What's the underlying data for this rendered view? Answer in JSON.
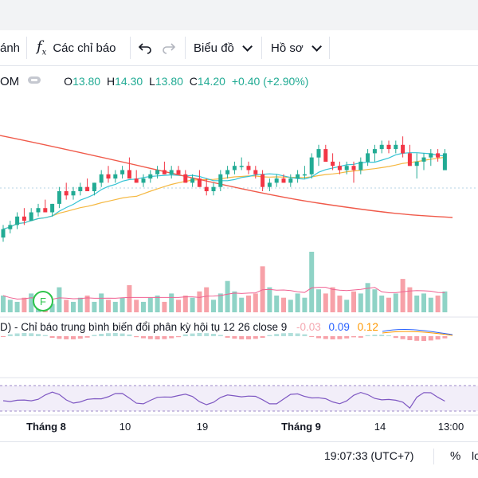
{
  "toolbar": {
    "partial_label": "ánh",
    "indicators_label": "Các chỉ báo",
    "chart_label": "Biểu đồ",
    "profile_label": "Hồ sơ"
  },
  "legend": {
    "symbol_partial": "OM",
    "open_key": "O",
    "open": "13.80",
    "high_key": "H",
    "high": "14.30",
    "low_key": "L",
    "low": "13.80",
    "close_key": "C",
    "close": "14.20",
    "change": "+0.40",
    "change_pct": "(+2.90%)"
  },
  "macd": {
    "label": "D) - Chỉ báo trung bình biến đổi phân kỳ hội tụ 12 26 close 9",
    "v1": "-0.03",
    "v2": "0.09",
    "v3": "0.12"
  },
  "xaxis": {
    "labels": [
      "Tháng 8",
      "10",
      "19",
      "Tháng 9",
      "14",
      "13:00"
    ]
  },
  "status": {
    "time": "19:07:33 (UTC+7)",
    "percent": "%",
    "log_partial": "lo"
  },
  "badge": {
    "letter": "F"
  },
  "colors": {
    "up": "#22ab94",
    "down": "#f23645",
    "ma_red": "#f05a4a",
    "ma_yellow": "#f5b841",
    "ma_cyan": "#35c3d4",
    "rsi": "#7e57c2",
    "macd_v1": "#f4a7b0",
    "macd_v2": "#2962ff",
    "macd_v3": "#ff9800"
  },
  "chart_data": {
    "type": "candlestick",
    "series": [
      {
        "name": "price",
        "values": [
          [
            12.2,
            12.5,
            12.1,
            12.4
          ],
          [
            12.4,
            12.6,
            12.3,
            12.5
          ],
          [
            12.5,
            12.8,
            12.4,
            12.7
          ],
          [
            12.7,
            12.9,
            12.5,
            12.6
          ],
          [
            12.6,
            12.9,
            12.6,
            12.8
          ],
          [
            12.8,
            13.0,
            12.7,
            12.9
          ],
          [
            12.9,
            13.1,
            12.8,
            12.8
          ],
          [
            12.8,
            13.0,
            12.7,
            13.0
          ],
          [
            13.0,
            13.4,
            12.9,
            13.3
          ],
          [
            13.3,
            13.5,
            13.1,
            13.2
          ],
          [
            13.2,
            13.4,
            13.1,
            13.3
          ],
          [
            13.3,
            13.5,
            13.2,
            13.4
          ],
          [
            13.4,
            13.6,
            13.3,
            13.3
          ],
          [
            13.3,
            13.5,
            13.2,
            13.5
          ],
          [
            13.5,
            13.8,
            13.4,
            13.7
          ],
          [
            13.7,
            13.9,
            13.5,
            13.6
          ],
          [
            13.6,
            13.8,
            13.5,
            13.7
          ],
          [
            13.7,
            13.9,
            13.6,
            13.8
          ],
          [
            13.8,
            14.1,
            13.7,
            13.6
          ],
          [
            13.6,
            13.8,
            13.5,
            13.5
          ],
          [
            13.5,
            13.7,
            13.4,
            13.6
          ],
          [
            13.6,
            13.8,
            13.5,
            13.7
          ],
          [
            13.7,
            13.9,
            13.6,
            13.8
          ],
          [
            13.8,
            14.0,
            13.7,
            13.7
          ],
          [
            13.7,
            13.9,
            13.6,
            13.8
          ],
          [
            13.8,
            13.9,
            13.7,
            13.7
          ],
          [
            13.7,
            13.8,
            13.5,
            13.5
          ],
          [
            13.5,
            13.7,
            13.4,
            13.6
          ],
          [
            13.6,
            13.8,
            13.4,
            13.4
          ],
          [
            13.4,
            13.6,
            13.2,
            13.3
          ],
          [
            13.3,
            13.5,
            13.2,
            13.4
          ],
          [
            13.4,
            13.8,
            13.3,
            13.7
          ],
          [
            13.7,
            13.9,
            13.6,
            13.8
          ],
          [
            13.8,
            14.0,
            13.7,
            13.9
          ],
          [
            13.9,
            14.1,
            13.8,
            13.9
          ],
          [
            13.9,
            14.0,
            13.7,
            13.8
          ],
          [
            13.8,
            13.9,
            13.6,
            13.7
          ],
          [
            13.7,
            13.8,
            13.3,
            13.4
          ],
          [
            13.4,
            13.6,
            13.3,
            13.5
          ],
          [
            13.5,
            13.7,
            13.4,
            13.6
          ],
          [
            13.6,
            13.7,
            13.5,
            13.5
          ],
          [
            13.5,
            13.7,
            13.4,
            13.6
          ],
          [
            13.6,
            13.8,
            13.5,
            13.7
          ],
          [
            13.7,
            13.9,
            13.6,
            13.7
          ],
          [
            13.7,
            14.2,
            13.6,
            14.1
          ],
          [
            14.1,
            14.4,
            13.9,
            14.3
          ],
          [
            14.3,
            14.4,
            14.0,
            14.0
          ],
          [
            14.0,
            14.2,
            13.8,
            13.9
          ],
          [
            13.9,
            14.0,
            13.7,
            13.8
          ],
          [
            13.8,
            14.0,
            13.7,
            13.9
          ],
          [
            13.9,
            14.0,
            13.5,
            13.8
          ],
          [
            13.8,
            14.1,
            13.7,
            14.0
          ],
          [
            14.0,
            14.3,
            13.9,
            14.2
          ],
          [
            14.2,
            14.4,
            14.0,
            14.3
          ],
          [
            14.3,
            14.5,
            14.2,
            14.4
          ],
          [
            14.4,
            14.5,
            14.2,
            14.3
          ],
          [
            14.3,
            14.5,
            14.2,
            14.4
          ],
          [
            14.4,
            14.6,
            14.1,
            14.2
          ],
          [
            14.2,
            14.4,
            13.9,
            13.9
          ],
          [
            13.9,
            14.2,
            13.6,
            14.0
          ],
          [
            14.0,
            14.2,
            13.8,
            14.1
          ],
          [
            14.1,
            14.3,
            13.9,
            14.2
          ],
          [
            14.2,
            14.3,
            14.0,
            14.1
          ],
          [
            13.8,
            14.3,
            13.8,
            14.2
          ]
        ]
      },
      {
        "name": "volume",
        "values": [
          8,
          6,
          5,
          7,
          9,
          5,
          6,
          4,
          12,
          6,
          5,
          7,
          8,
          5,
          9,
          6,
          5,
          7,
          13,
          6,
          5,
          7,
          8,
          5,
          9,
          6,
          8,
          7,
          10,
          12,
          6,
          9,
          15,
          10,
          7,
          8,
          9,
          22,
          12,
          8,
          7,
          6,
          9,
          7,
          29,
          11,
          9,
          12,
          8,
          6,
          10,
          9,
          14,
          11,
          8,
          7,
          9,
          16,
          12,
          8,
          9,
          7,
          8,
          10
        ]
      }
    ]
  }
}
